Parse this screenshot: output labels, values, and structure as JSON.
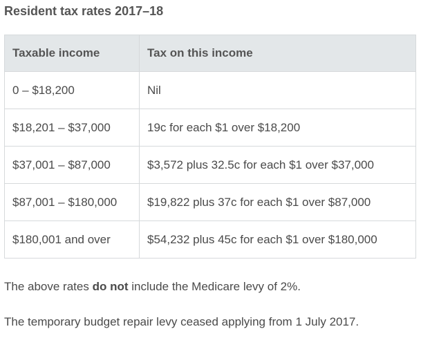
{
  "title": "Resident tax rates 2017–18",
  "table": {
    "headers": [
      "Taxable income",
      "Tax on this income"
    ],
    "rows": [
      [
        "0 – $18,200",
        "Nil"
      ],
      [
        "$18,201 – $37,000",
        "19c for each $1 over $18,200"
      ],
      [
        "$37,001 – $87,000",
        "$3,572 plus 32.5c for each $1 over $37,000"
      ],
      [
        "$87,001 – $180,000",
        "$19,822 plus 37c for each $1 over $87,000"
      ],
      [
        "$180,001 and over",
        "$54,232 plus 45c for each $1 over $180,000"
      ]
    ]
  },
  "notes": {
    "p1_before": "The above rates ",
    "p1_bold": "do not",
    "p1_after": " include the Medicare levy of 2%.",
    "p2": "The temporary budget repair levy ceased applying from 1 July 2017."
  }
}
